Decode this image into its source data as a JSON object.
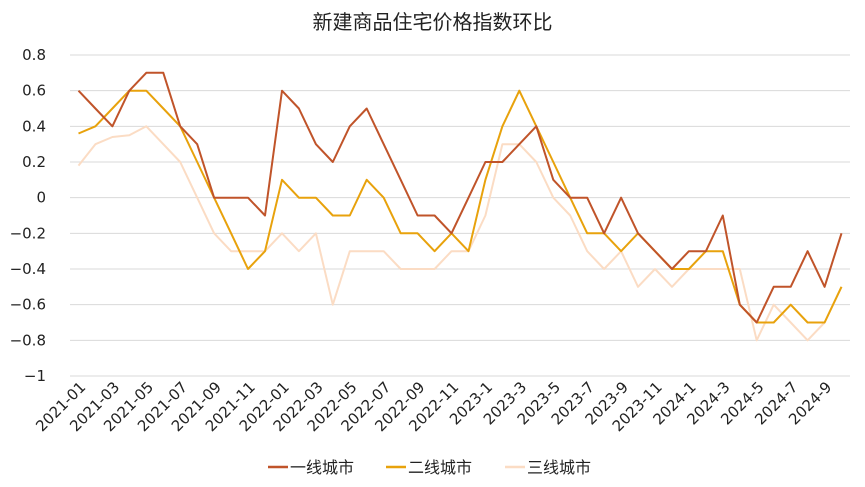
{
  "chart_data": {
    "type": "line",
    "title": "新建商品住宅价格指数环比",
    "ylim": [
      -1,
      0.8
    ],
    "yticks": [
      "0.8",
      "0.6",
      "0.4",
      "0.2",
      "0",
      "−0.2",
      "−0.4",
      "−0.6",
      "−0.8",
      "−1"
    ],
    "ytick_values": [
      0.8,
      0.6,
      0.4,
      0.2,
      0,
      -0.2,
      -0.4,
      -0.6,
      -0.8,
      -1
    ],
    "xtick_labels": [
      "2021-01",
      "2021-03",
      "2021-05",
      "2021-07",
      "2021-09",
      "2021-11",
      "2022-01",
      "2022-03",
      "2022-05",
      "2022-07",
      "2022-09",
      "2022-11",
      "2023-1",
      "2023-3",
      "2023-5",
      "2023-7",
      "2023-9",
      "2023-11",
      "2024-1",
      "2024-3",
      "2024-5",
      "2024-7",
      "2024-9"
    ],
    "x": [
      "2021-01",
      "2021-02",
      "2021-03",
      "2021-04",
      "2021-05",
      "2021-06",
      "2021-07",
      "2021-08",
      "2021-09",
      "2021-10",
      "2021-11",
      "2021-12",
      "2022-01",
      "2022-02",
      "2022-03",
      "2022-04",
      "2022-05",
      "2022-06",
      "2022-07",
      "2022-08",
      "2022-09",
      "2022-10",
      "2022-11",
      "2022-12",
      "2023-1",
      "2023-2",
      "2023-3",
      "2023-4",
      "2023-5",
      "2023-6",
      "2023-7",
      "2023-8",
      "2023-9",
      "2023-10",
      "2023-11",
      "2023-12",
      "2024-1",
      "2024-2",
      "2024-3",
      "2024-4",
      "2024-5",
      "2024-6",
      "2024-7",
      "2024-8",
      "2024-9",
      "2024-10"
    ],
    "series": [
      {
        "name": "一线城市",
        "color": "#C0542A",
        "values": [
          0.6,
          0.5,
          0.4,
          0.6,
          0.7,
          0.7,
          0.4,
          0.3,
          0.0,
          0.0,
          0.0,
          -0.1,
          0.6,
          0.5,
          0.3,
          0.2,
          0.4,
          0.5,
          0.3,
          0.1,
          -0.1,
          -0.1,
          -0.2,
          0.0,
          0.2,
          0.2,
          0.3,
          0.4,
          0.1,
          0.0,
          0.0,
          -0.2,
          0.0,
          -0.2,
          -0.3,
          -0.4,
          -0.3,
          -0.3,
          -0.1,
          -0.6,
          -0.7,
          -0.5,
          -0.5,
          -0.3,
          -0.5,
          -0.2
        ]
      },
      {
        "name": "二线城市",
        "color": "#E8A20C",
        "values": [
          0.36,
          0.4,
          0.5,
          0.6,
          0.6,
          0.5,
          0.4,
          0.2,
          0.0,
          -0.2,
          -0.4,
          -0.3,
          0.1,
          0.0,
          0.0,
          -0.1,
          -0.1,
          0.1,
          0.0,
          -0.2,
          -0.2,
          -0.3,
          -0.2,
          -0.3,
          0.1,
          0.4,
          0.6,
          0.4,
          0.2,
          0.0,
          -0.2,
          -0.2,
          -0.3,
          -0.2,
          -0.3,
          -0.4,
          -0.4,
          -0.3,
          -0.3,
          -0.6,
          -0.7,
          -0.7,
          -0.6,
          -0.7,
          -0.7,
          -0.5
        ]
      },
      {
        "name": "三线城市",
        "color": "#FBDCC4",
        "values": [
          0.18,
          0.3,
          0.34,
          0.35,
          0.4,
          0.3,
          0.2,
          0.0,
          -0.2,
          -0.3,
          -0.3,
          -0.3,
          -0.2,
          -0.3,
          -0.2,
          -0.6,
          -0.3,
          -0.3,
          -0.3,
          -0.4,
          -0.4,
          -0.4,
          -0.3,
          -0.3,
          -0.1,
          0.3,
          0.3,
          0.2,
          0.0,
          -0.1,
          -0.3,
          -0.4,
          -0.3,
          -0.5,
          -0.4,
          -0.5,
          -0.4,
          -0.4,
          -0.4,
          -0.4,
          -0.8,
          -0.6,
          -0.7,
          -0.8,
          -0.7,
          -0.5
        ]
      }
    ],
    "grid": true,
    "legend_position": "bottom"
  }
}
